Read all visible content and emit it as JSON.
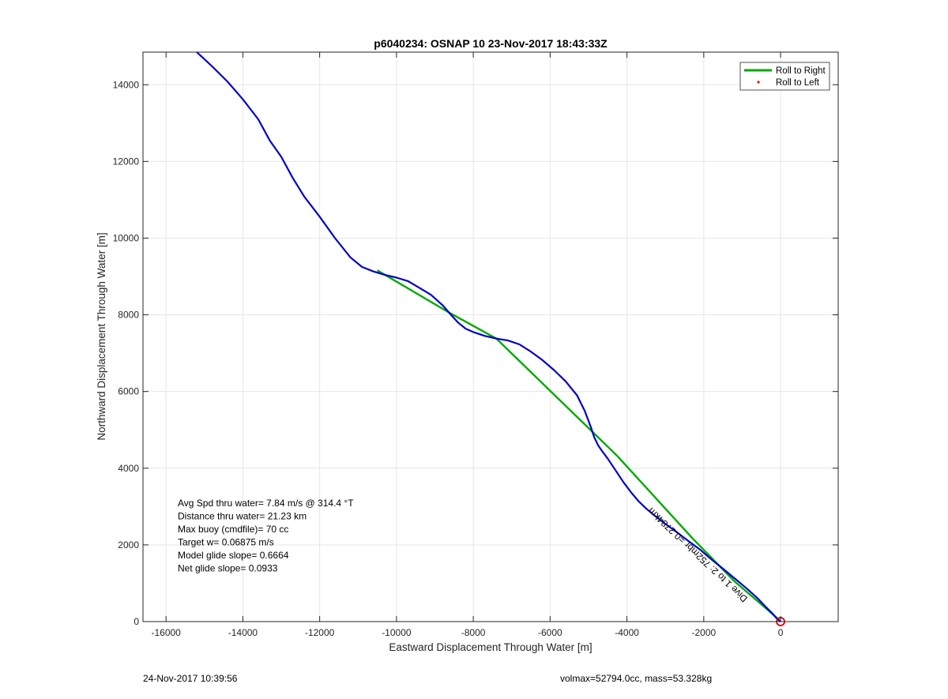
{
  "chart_data": {
    "type": "line",
    "title": "p6040234: OSNAP 10 23-Nov-2017 18:43:33Z",
    "xlabel": "Eastward Displacement Through Water [m]",
    "ylabel": "Northward Displacement Through Water [m]",
    "xlim": [
      -16600,
      1500
    ],
    "ylim": [
      0,
      14850
    ],
    "xticks": [
      -16000,
      -14000,
      -12000,
      -10000,
      -8000,
      -6000,
      -4000,
      -2000,
      0
    ],
    "yticks": [
      0,
      2000,
      4000,
      6000,
      8000,
      10000,
      12000,
      14000
    ],
    "grid": true,
    "legend_position": "top-right",
    "legend": [
      {
        "name": "Roll to Right",
        "color": "#00aa00",
        "style": "line"
      },
      {
        "name": "Roll to Left",
        "color": "#ff0000",
        "style": "dot"
      }
    ],
    "series": [
      {
        "color": "#0000cc",
        "x": [
          -15200,
          -14800,
          -14400,
          -14000,
          -13600,
          -13300,
          -13000,
          -12700,
          -12400,
          -12000,
          -11600,
          -11200,
          -10900,
          -10600,
          -10300,
          -10000,
          -9700,
          -9400,
          -9100,
          -8800,
          -8600,
          -8400,
          -8200,
          -8000,
          -7700,
          -7400,
          -7100,
          -6800,
          -6500,
          -6200,
          -5900,
          -5600,
          -5300,
          -5100,
          -4950,
          -4850,
          -4750,
          -4650,
          -4500,
          -4300,
          -4100,
          -3900,
          -3700,
          -3500,
          -3300,
          -3000,
          -2700,
          -2400,
          -2100,
          -1800,
          -1500,
          -1200,
          -900,
          -600,
          -400,
          -200,
          -100,
          0
        ],
        "y": [
          14850,
          14480,
          14080,
          13620,
          13100,
          12550,
          12120,
          11570,
          11080,
          10560,
          10000,
          9500,
          9250,
          9130,
          9040,
          8970,
          8880,
          8700,
          8520,
          8250,
          8020,
          7800,
          7640,
          7550,
          7450,
          7380,
          7330,
          7230,
          7040,
          6820,
          6560,
          6270,
          5900,
          5500,
          5100,
          4800,
          4600,
          4450,
          4250,
          3950,
          3650,
          3380,
          3140,
          2950,
          2780,
          2550,
          2330,
          2100,
          1880,
          1620,
          1380,
          1130,
          880,
          610,
          400,
          200,
          80,
          0
        ]
      },
      {
        "name": "Roll to Right",
        "color": "#00aa00",
        "x": [
          -10500,
          -8600,
          -7400,
          -4250,
          -2300,
          -1200,
          -500,
          -100,
          0
        ],
        "y": [
          9160,
          8040,
          7380,
          4320,
          2180,
          1050,
          450,
          100,
          0
        ]
      }
    ],
    "marker": {
      "x": 0,
      "y": 0,
      "color": "#cc0000"
    },
    "annotations": [
      "Avg Spd thru water=  7.84 m/s @ 314.4 °T",
      "Distance thru water= 21.23 km",
      "Max buoy (cmdfile)= 70 cc",
      "Target w= 0.06875 m/s",
      "Model glide slope= 0.6664",
      "Net glide slope= 0.0933"
    ],
    "track_label": {
      "text": "Dive 1 to 2: 752mbr =0.2784km",
      "x": -2100,
      "y": 1800
    }
  },
  "footer": {
    "left": "24-Nov-2017 10:39:56",
    "right": "volmax=52794.0cc, mass=53.328kg"
  }
}
